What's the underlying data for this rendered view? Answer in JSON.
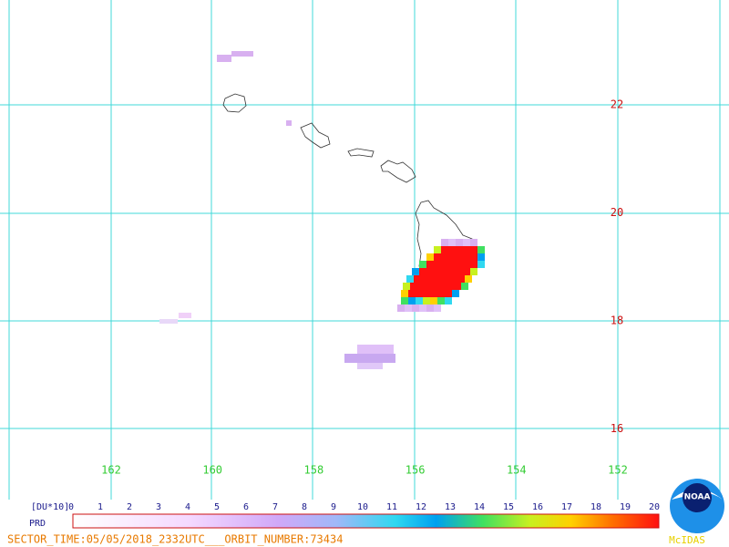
{
  "map": {
    "lat_labels": [
      "22",
      "20",
      "18",
      "16"
    ],
    "lon_labels": [
      "162",
      "160",
      "158",
      "156",
      "154",
      "152"
    ]
  },
  "colorbar": {
    "unit": "[DU*10]",
    "label": "PRD",
    "ticks": [
      "0",
      "1",
      "2",
      "3",
      "4",
      "5",
      "6",
      "7",
      "8",
      "9",
      "10",
      "11",
      "12",
      "13",
      "14",
      "15",
      "16",
      "17",
      "18",
      "19",
      "20"
    ]
  },
  "footer": "SECTOR_TIME:05/05/2018_2332UTC___ORBIT_NUMBER:73434",
  "logo": {
    "text": "NOAA",
    "caption": "McIDAS"
  }
}
